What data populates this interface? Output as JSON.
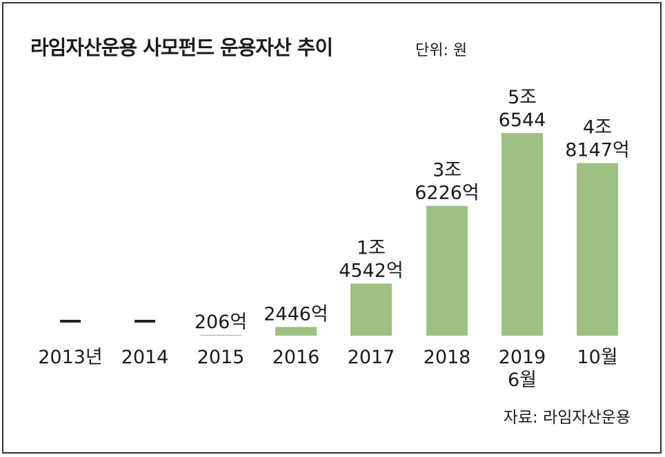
{
  "header": {
    "title": "라임자산운용 사모펀드 운용자산 추이",
    "unit": "단위: 원"
  },
  "footer": {
    "source": "자료: 라임자산운용"
  },
  "colors": {
    "bar": "#9cc183",
    "dash": "#222222",
    "text": "#1a1a1a"
  },
  "chart_data": {
    "type": "bar",
    "categories": [
      [
        "2013년"
      ],
      [
        "2014"
      ],
      [
        "2015"
      ],
      [
        "2016"
      ],
      [
        "2017"
      ],
      [
        "2018"
      ],
      [
        "2019",
        "6월"
      ],
      [
        "10월"
      ]
    ],
    "values": [
      null,
      null,
      206,
      2446,
      14542,
      36226,
      56544,
      48147
    ],
    "value_unit": "억 원",
    "data_labels": [
      [
        "—"
      ],
      [
        "—"
      ],
      [
        "206억"
      ],
      [
        "2446억"
      ],
      [
        "1조",
        "4542억"
      ],
      [
        "3조",
        "6226억"
      ],
      [
        "5조",
        "6544"
      ],
      [
        "4조",
        "8147억"
      ]
    ],
    "title": "라임자산운용 사모펀드 운용자산 추이",
    "ylim": [
      0,
      60000
    ],
    "grid": false,
    "legend": "none"
  }
}
